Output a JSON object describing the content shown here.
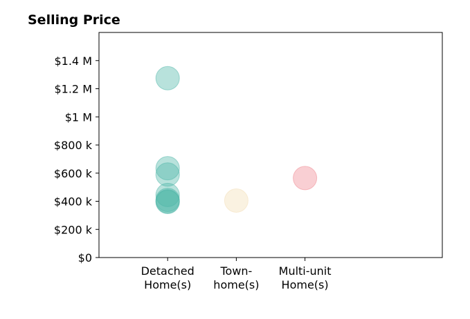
{
  "chart_data": {
    "type": "scatter",
    "title": "Selling Price",
    "xlabel": "",
    "ylabel": "",
    "categories": [
      [
        "Detached",
        "Home(s)"
      ],
      [
        "Town-",
        "home(s)"
      ],
      [
        "Multi-unit",
        "Home(s)"
      ]
    ],
    "xlim": [
      -1,
      4
    ],
    "ylim": [
      0,
      1600000
    ],
    "yticks": [
      0,
      200000,
      400000,
      600000,
      800000,
      1000000,
      1200000,
      1400000
    ],
    "ytick_labels": [
      "$0",
      "$200 k",
      "$400 k",
      "$600 k",
      "$800 k",
      "$1 M",
      "$1.2 M",
      "$1.4 M"
    ],
    "grid": false,
    "series": [
      {
        "category": 0,
        "color": "#4db6a8",
        "values": [
          1275000,
          635000,
          590000,
          445000,
          410000,
          400000,
          395000
        ]
      },
      {
        "category": 1,
        "color": "#f3deb5",
        "values": [
          405000
        ]
      },
      {
        "category": 2,
        "color": "#f08890",
        "values": [
          565000
        ]
      }
    ]
  }
}
